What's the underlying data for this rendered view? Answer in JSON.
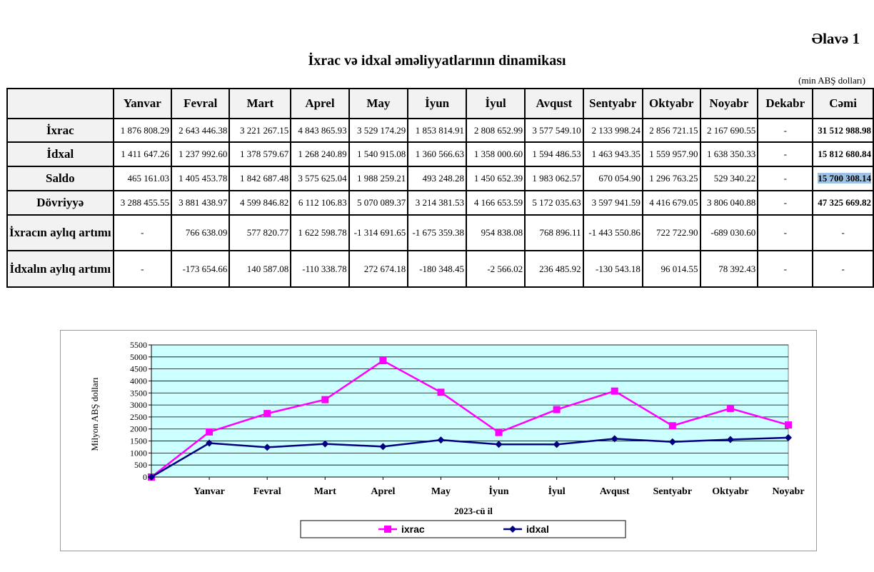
{
  "header": {
    "appendix": "Əlavə 1",
    "title": "İxrac və idxal əməliyyatlarının dinamikası",
    "unit": "(min ABŞ dolları)"
  },
  "table": {
    "columns": [
      "",
      "Yanvar",
      "Fevral",
      "Mart",
      "Aprel",
      "May",
      "İyun",
      "İyul",
      "Avqust",
      "Sentyabr",
      "Oktyabr",
      "Noyabr",
      "Dekabr",
      "Cəmi"
    ],
    "rows": [
      {
        "label": "İxrac",
        "cells": [
          "1 876 808.29",
          "2 643 446.38",
          "3 221 267.15",
          "4 843 865.93",
          "3 529 174.29",
          "1 853 814.91",
          "2 808 652.99",
          "3 577 549.10",
          "2 133 998.24",
          "2 856 721.15",
          "2 167 690.55",
          "-",
          "31 512 988.98"
        ]
      },
      {
        "label": "İdxal",
        "cells": [
          "1 411 647.26",
          "1 237 992.60",
          "1 378 579.67",
          "1 268 240.89",
          "1 540 915.08",
          "1 360 566.63",
          "1 358 000.60",
          "1 594 486.53",
          "1 463 943.35",
          "1 559 957.90",
          "1 638 350.33",
          "-",
          "15 812 680.84"
        ]
      },
      {
        "label": "Saldo",
        "cells": [
          "465 161.03",
          "1 405 453.78",
          "1 842 687.48",
          "3 575 625.04",
          "1 988 259.21",
          "493 248.28",
          "1 450 652.39",
          "1 983 062.57",
          "670 054.90",
          "1 296 763.25",
          "529 340.22",
          "-",
          "15 700 308.14"
        ]
      },
      {
        "label": "Dövriyyə",
        "cells": [
          "3 288 455.55",
          "3 881 438.97",
          "4 599 846.82",
          "6 112 106.83",
          "5 070 089.37",
          "3 214 381.53",
          "4 166 653.59",
          "5 172 035.63",
          "3 597 941.59",
          "4 416 679.05",
          "3 806 040.88",
          "-",
          "47 325 669.82"
        ]
      },
      {
        "label": "İxracın aylıq artımı",
        "cells": [
          "-",
          "766 638.09",
          "577 820.77",
          "1 622 598.78",
          "-1 314 691.65",
          "-1 675 359.38",
          "954 838.08",
          "768 896.11",
          "-1 443 550.86",
          "722 722.90",
          "-689 030.60",
          "-",
          "-"
        ]
      },
      {
        "label": "İdxalın aylıq artımı",
        "cells": [
          "-",
          "-173 654.66",
          "140 587.08",
          "-110 338.78",
          "272 674.18",
          "-180 348.45",
          "-2 566.02",
          "236 485.92",
          "-130 543.18",
          "96 014.55",
          "78 392.43",
          "-",
          "-"
        ]
      }
    ]
  },
  "chart_data": {
    "type": "line",
    "categories": [
      "",
      "Yanvar",
      "Fevral",
      "Mart",
      "Aprel",
      "May",
      "İyun",
      "İyul",
      "Avqust",
      "Sentyabr",
      "Oktyabr",
      "Noyabr"
    ],
    "series": [
      {
        "name": "ixrac",
        "color": "#ff00ff",
        "marker": "square",
        "values": [
          0,
          1876.8,
          2643.4,
          3221.3,
          4843.9,
          3529.2,
          1853.8,
          2808.7,
          3577.5,
          2134.0,
          2856.7,
          2167.7
        ]
      },
      {
        "name": "idxal",
        "color": "#000080",
        "marker": "diamond",
        "values": [
          0,
          1411.6,
          1238.0,
          1378.6,
          1268.2,
          1540.9,
          1360.6,
          1358.0,
          1594.5,
          1463.9,
          1560.0,
          1638.4
        ]
      }
    ],
    "yticks": [
      0,
      500,
      1000,
      1500,
      2000,
      2500,
      3000,
      3500,
      4000,
      4500,
      5000,
      5500
    ],
    "ylim": [
      0,
      5500
    ],
    "xlabel": "2023-cü il",
    "ylabel": "Milyon ABŞ dolları",
    "plot_bg": "#ccffff",
    "grid": true,
    "legend": "bottom"
  }
}
